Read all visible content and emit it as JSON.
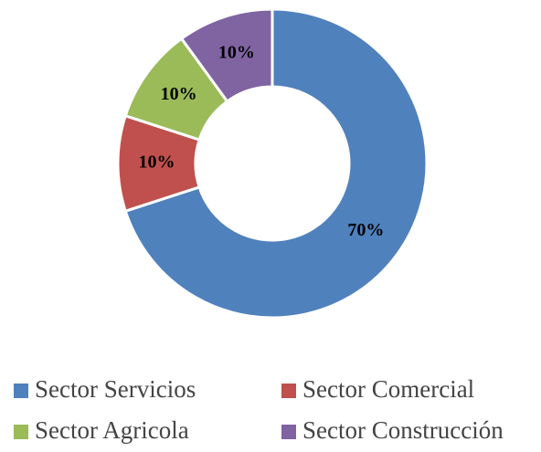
{
  "chart_data": {
    "type": "donut",
    "categories": [
      "Sector Servicios",
      "Sector Comercial",
      "Sector Agricola",
      "Sector Construcción"
    ],
    "values": [
      70,
      10,
      10,
      10
    ],
    "value_labels": [
      "70%",
      "10%",
      "10%",
      "10%"
    ],
    "colors": [
      "#4f81bd",
      "#c0504d",
      "#9bbb59",
      "#8064a2"
    ],
    "legend": "bottom"
  }
}
